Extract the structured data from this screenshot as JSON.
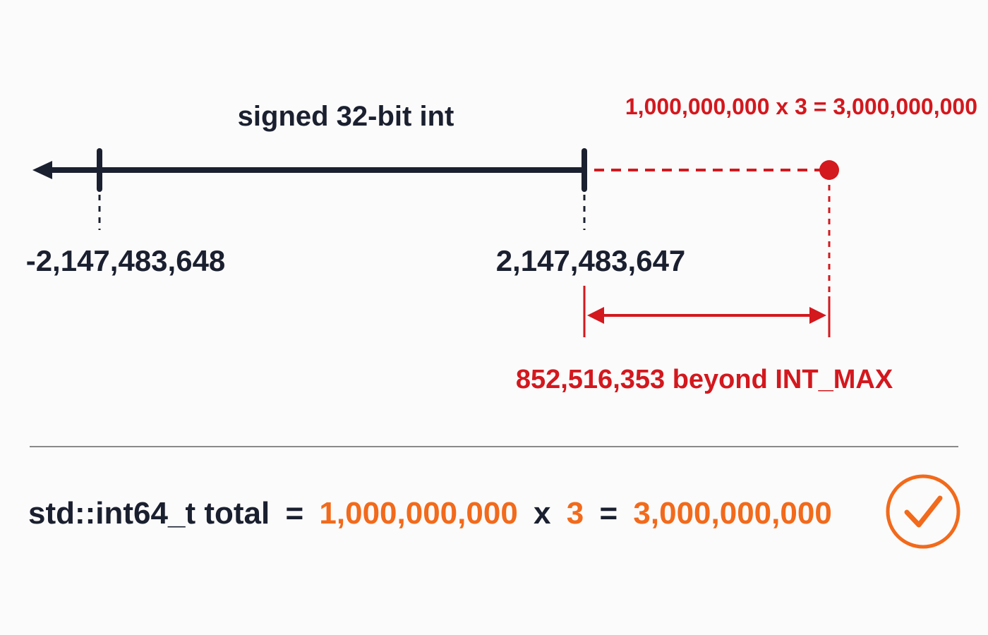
{
  "number_line": {
    "title": "signed 32-bit int",
    "min_label": "-2,147,483,648",
    "max_label": "2,147,483,647",
    "overflow_expression": "1,000,000,000 x 3 = 3,000,000,000",
    "overflow_note": "852,516,353 beyond INT_MAX"
  },
  "code_line": {
    "parts": [
      "std::int64_t total",
      "=",
      "1,000,000,000",
      "x",
      "3",
      "=",
      "3,000,000,000"
    ]
  }
}
